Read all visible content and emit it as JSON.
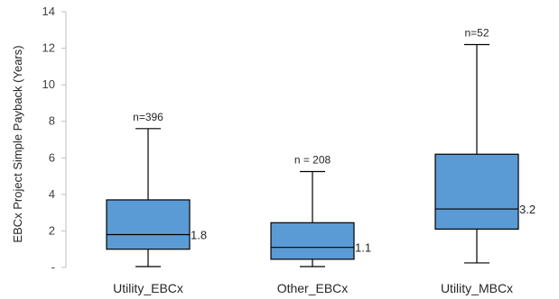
{
  "chart_data": {
    "type": "box",
    "title": "",
    "xlabel": "",
    "ylabel": "EBCx Project Simple Payback (Years)",
    "ylim": [
      0,
      14
    ],
    "yticks": [
      {
        "value": 0,
        "label": "-"
      },
      {
        "value": 2,
        "label": "2"
      },
      {
        "value": 4,
        "label": "4"
      },
      {
        "value": 6,
        "label": "6"
      },
      {
        "value": 8,
        "label": "8"
      },
      {
        "value": 10,
        "label": "10"
      },
      {
        "value": 12,
        "label": "12"
      },
      {
        "value": 14,
        "label": "14"
      }
    ],
    "grid": false,
    "box_color": "#5B9BD5",
    "boxes": [
      {
        "category": "Utility_EBCx",
        "n_label": "n=396",
        "min": 0.05,
        "q1": 1.0,
        "median": 1.8,
        "q3": 3.7,
        "max": 7.6,
        "median_label": "1.8"
      },
      {
        "category": "Other_EBCx",
        "n_label": "n = 208",
        "min": 0.05,
        "q1": 0.45,
        "median": 1.1,
        "q3": 2.45,
        "max": 5.25,
        "median_label": "1.1"
      },
      {
        "category": "Utility_MBCx",
        "n_label": "n=52",
        "min": 0.25,
        "q1": 2.1,
        "median": 3.2,
        "q3": 6.2,
        "max": 12.2,
        "median_label": "3.2"
      }
    ]
  }
}
